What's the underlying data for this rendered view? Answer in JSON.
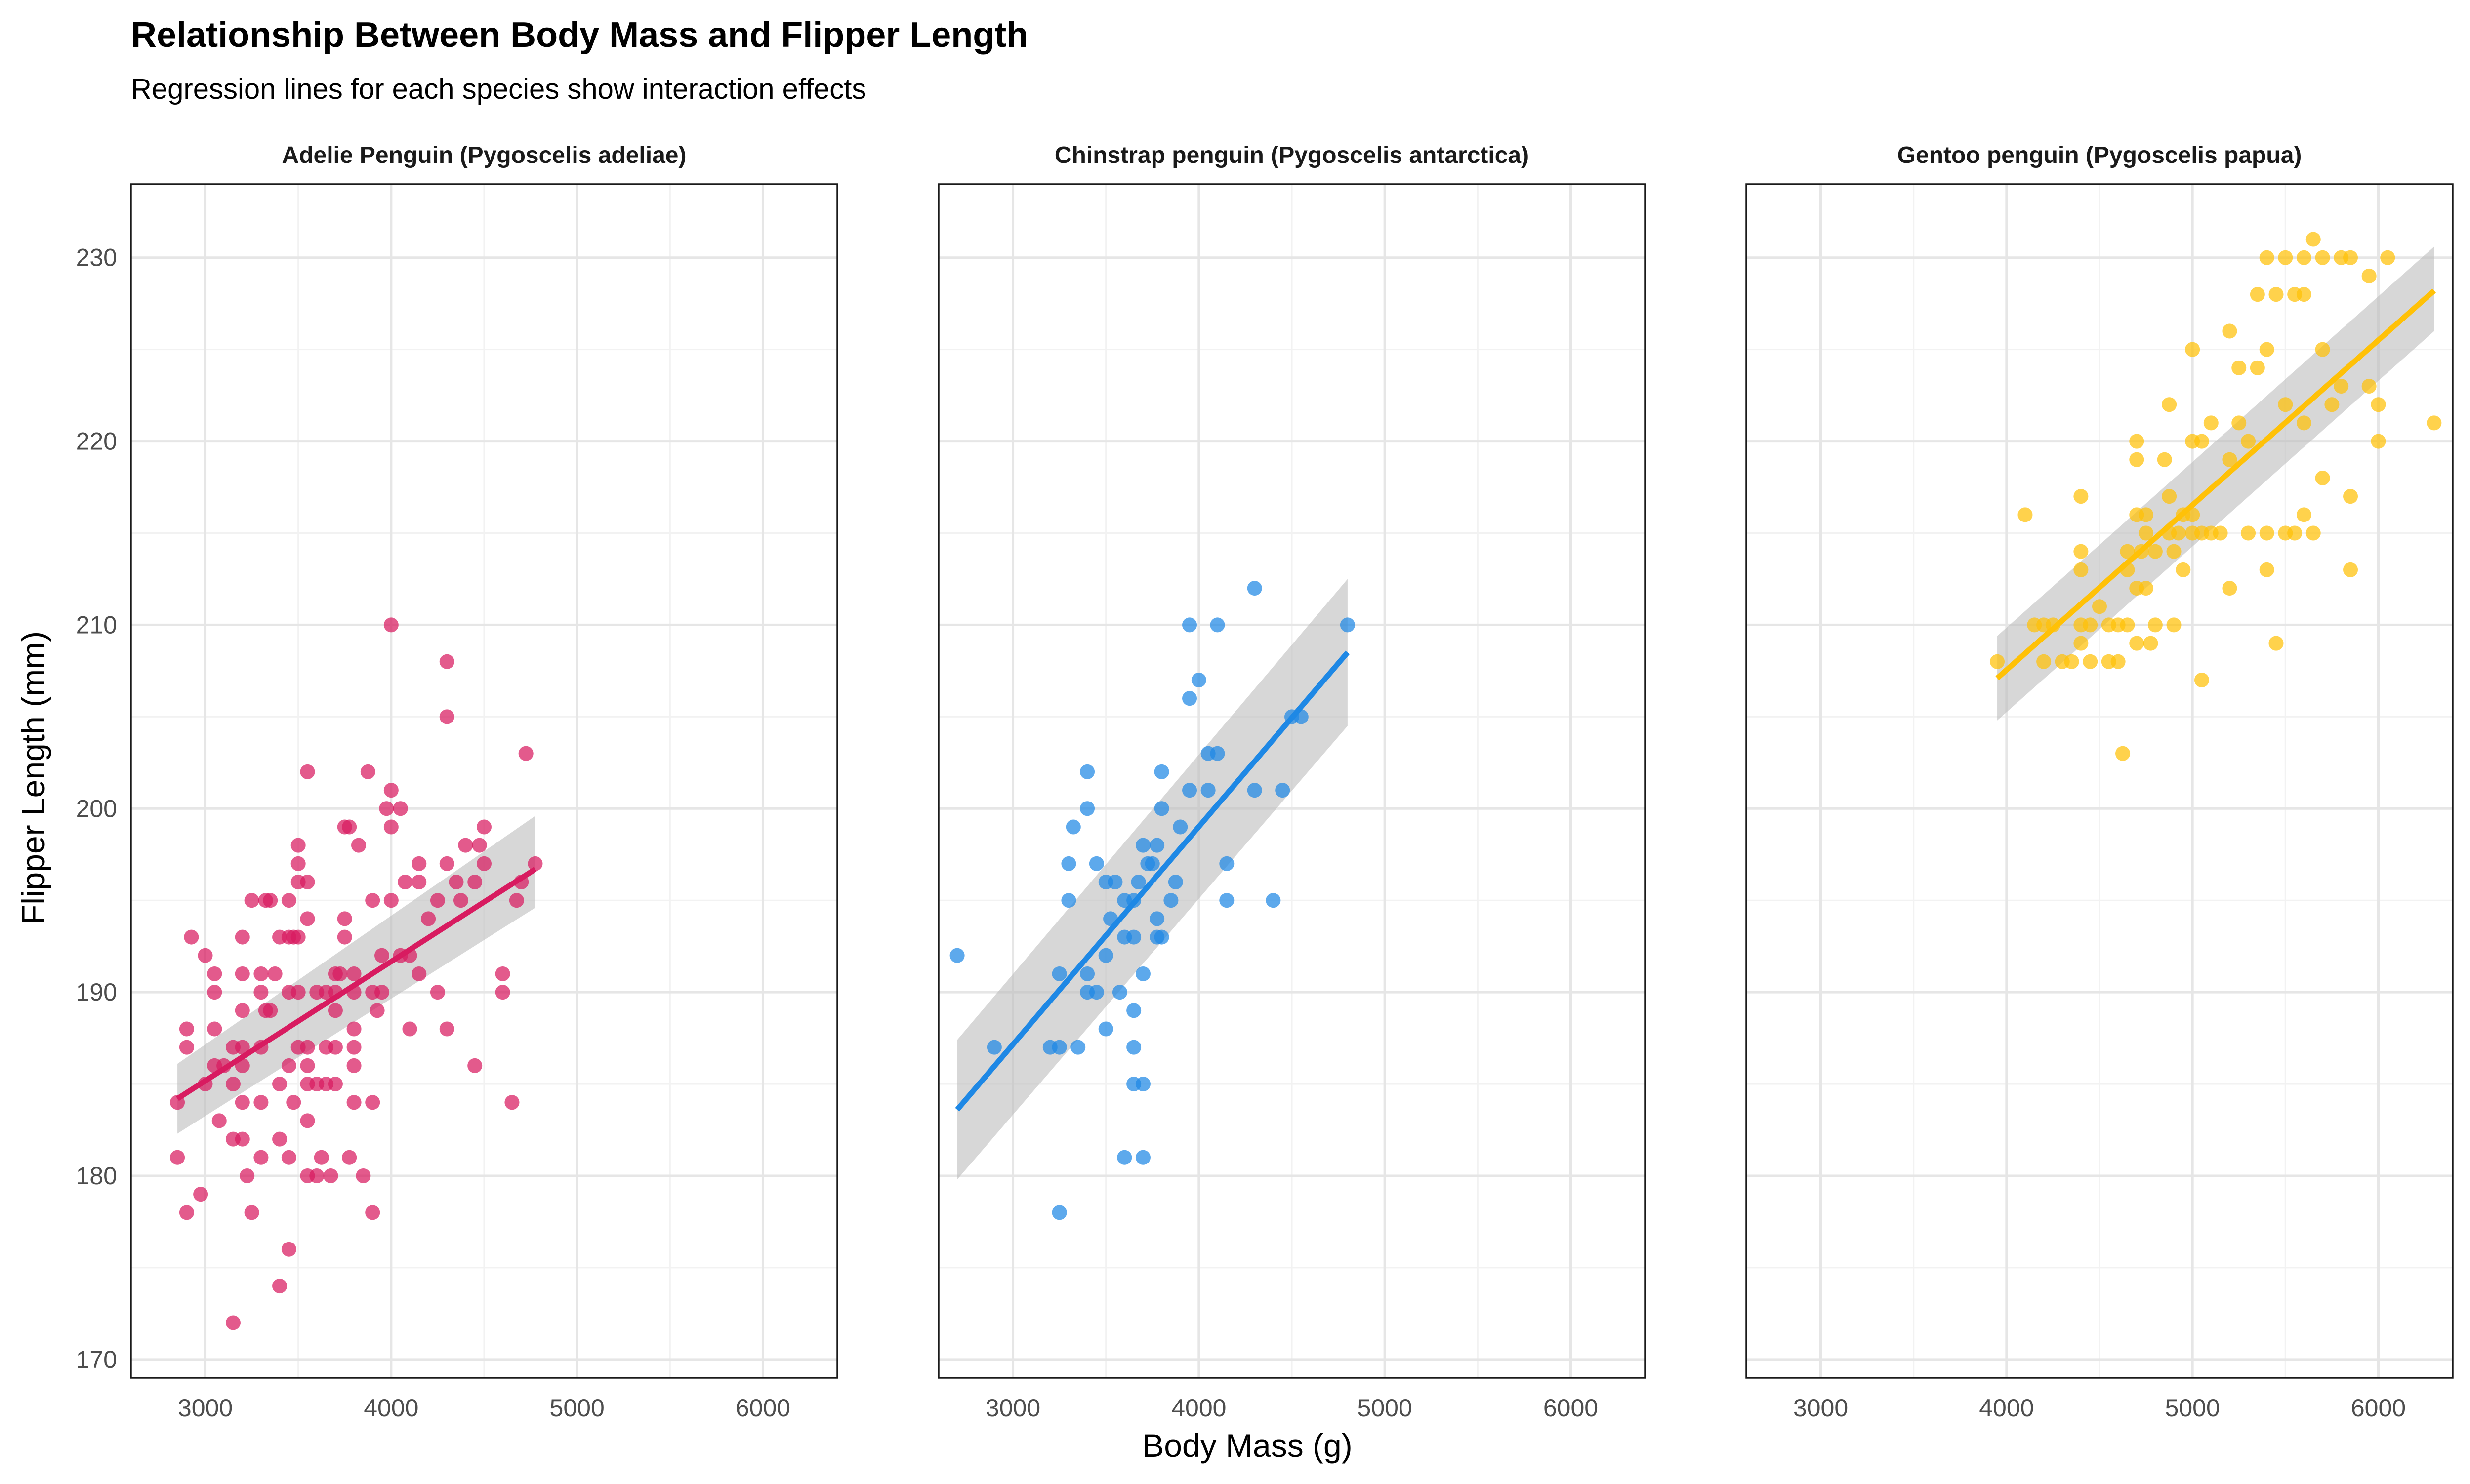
{
  "chart_data": {
    "type": "scatter",
    "title": "Relationship Between Body Mass and Flipper Length",
    "subtitle": "Regression lines for each species show interaction effects",
    "xlabel": "Body Mass (g)",
    "ylabel": "Flipper Length (mm)",
    "xlim": [
      2600,
      6400
    ],
    "ylim": [
      169,
      234
    ],
    "x_ticks": [
      3000,
      4000,
      5000,
      6000
    ],
    "y_ticks": [
      170,
      180,
      190,
      200,
      210,
      220,
      230
    ],
    "grid": true,
    "legend": "none",
    "panels": [
      {
        "name": "Adelie Penguin (Pygoscelis adeliae)",
        "color": "#d81b60",
        "trend": {
          "x": [
            2850,
            4775
          ],
          "y": [
            184.2,
            196.7
          ],
          "ci_low": [
            182.3,
            194.6
          ],
          "ci_high": [
            186.1,
            199.6
          ]
        },
        "points": [
          [
            2850,
            181
          ],
          [
            2850,
            184
          ],
          [
            2900,
            178
          ],
          [
            2900,
            187
          ],
          [
            2900,
            188
          ],
          [
            2925,
            193
          ],
          [
            2975,
            179
          ],
          [
            3000,
            185
          ],
          [
            3000,
            192
          ],
          [
            3050,
            186
          ],
          [
            3050,
            188
          ],
          [
            3050,
            190
          ],
          [
            3050,
            191
          ],
          [
            3075,
            183
          ],
          [
            3100,
            186
          ],
          [
            3150,
            172
          ],
          [
            3150,
            182
          ],
          [
            3150,
            185
          ],
          [
            3150,
            187
          ],
          [
            3200,
            182
          ],
          [
            3200,
            184
          ],
          [
            3200,
            186
          ],
          [
            3200,
            187
          ],
          [
            3200,
            189
          ],
          [
            3200,
            191
          ],
          [
            3200,
            193
          ],
          [
            3225,
            180
          ],
          [
            3250,
            178
          ],
          [
            3250,
            195
          ],
          [
            3300,
            181
          ],
          [
            3300,
            184
          ],
          [
            3300,
            187
          ],
          [
            3300,
            190
          ],
          [
            3300,
            191
          ],
          [
            3325,
            189
          ],
          [
            3325,
            195
          ],
          [
            3350,
            189
          ],
          [
            3350,
            195
          ],
          [
            3375,
            191
          ],
          [
            3400,
            174
          ],
          [
            3400,
            182
          ],
          [
            3400,
            185
          ],
          [
            3400,
            193
          ],
          [
            3450,
            176
          ],
          [
            3450,
            181
          ],
          [
            3450,
            186
          ],
          [
            3450,
            190
          ],
          [
            3450,
            193
          ],
          [
            3450,
            195
          ],
          [
            3475,
            184
          ],
          [
            3475,
            193
          ],
          [
            3500,
            187
          ],
          [
            3500,
            190
          ],
          [
            3500,
            193
          ],
          [
            3500,
            196
          ],
          [
            3500,
            197
          ],
          [
            3500,
            198
          ],
          [
            3550,
            180
          ],
          [
            3550,
            183
          ],
          [
            3550,
            185
          ],
          [
            3550,
            186
          ],
          [
            3550,
            187
          ],
          [
            3550,
            194
          ],
          [
            3550,
            196
          ],
          [
            3550,
            202
          ],
          [
            3600,
            180
          ],
          [
            3600,
            185
          ],
          [
            3600,
            190
          ],
          [
            3625,
            181
          ],
          [
            3650,
            185
          ],
          [
            3650,
            187
          ],
          [
            3650,
            190
          ],
          [
            3675,
            180
          ],
          [
            3700,
            185
          ],
          [
            3700,
            187
          ],
          [
            3700,
            189
          ],
          [
            3700,
            190
          ],
          [
            3700,
            191
          ],
          [
            3725,
            191
          ],
          [
            3750,
            193
          ],
          [
            3750,
            194
          ],
          [
            3750,
            199
          ],
          [
            3775,
            181
          ],
          [
            3775,
            199
          ],
          [
            3800,
            184
          ],
          [
            3800,
            186
          ],
          [
            3800,
            187
          ],
          [
            3800,
            188
          ],
          [
            3800,
            190
          ],
          [
            3800,
            191
          ],
          [
            3825,
            198
          ],
          [
            3850,
            180
          ],
          [
            3875,
            202
          ],
          [
            3900,
            178
          ],
          [
            3900,
            184
          ],
          [
            3900,
            190
          ],
          [
            3900,
            195
          ],
          [
            3925,
            189
          ],
          [
            3950,
            190
          ],
          [
            3950,
            192
          ],
          [
            3975,
            200
          ],
          [
            4000,
            199
          ],
          [
            4000,
            201
          ],
          [
            4000,
            195
          ],
          [
            4000,
            210
          ],
          [
            4050,
            192
          ],
          [
            4050,
            200
          ],
          [
            4075,
            196
          ],
          [
            4100,
            188
          ],
          [
            4100,
            192
          ],
          [
            4150,
            191
          ],
          [
            4150,
            196
          ],
          [
            4150,
            197
          ],
          [
            4200,
            194
          ],
          [
            4250,
            190
          ],
          [
            4250,
            195
          ],
          [
            4300,
            188
          ],
          [
            4300,
            197
          ],
          [
            4300,
            205
          ],
          [
            4300,
            208
          ],
          [
            4350,
            196
          ],
          [
            4375,
            195
          ],
          [
            4400,
            198
          ],
          [
            4450,
            186
          ],
          [
            4450,
            196
          ],
          [
            4475,
            198
          ],
          [
            4500,
            197
          ],
          [
            4500,
            199
          ],
          [
            4600,
            190
          ],
          [
            4600,
            191
          ],
          [
            4650,
            184
          ],
          [
            4675,
            195
          ],
          [
            4700,
            196
          ],
          [
            4725,
            203
          ],
          [
            4775,
            197
          ]
        ]
      },
      {
        "name": "Chinstrap penguin (Pygoscelis antarctica)",
        "color": "#1e88e5",
        "trend": {
          "x": [
            2700,
            4800
          ],
          "y": [
            183.6,
            208.5
          ],
          "ci_low": [
            179.8,
            204.5
          ],
          "ci_high": [
            187.4,
            212.5
          ]
        },
        "points": [
          [
            2700,
            192
          ],
          [
            2900,
            187
          ],
          [
            3200,
            187
          ],
          [
            3250,
            178
          ],
          [
            3250,
            187
          ],
          [
            3250,
            191
          ],
          [
            3300,
            195
          ],
          [
            3300,
            197
          ],
          [
            3325,
            199
          ],
          [
            3350,
            187
          ],
          [
            3400,
            190
          ],
          [
            3400,
            191
          ],
          [
            3400,
            200
          ],
          [
            3400,
            202
          ],
          [
            3450,
            190
          ],
          [
            3450,
            197
          ],
          [
            3500,
            188
          ],
          [
            3500,
            192
          ],
          [
            3500,
            196
          ],
          [
            3525,
            194
          ],
          [
            3550,
            196
          ],
          [
            3575,
            190
          ],
          [
            3600,
            181
          ],
          [
            3600,
            193
          ],
          [
            3600,
            195
          ],
          [
            3650,
            185
          ],
          [
            3650,
            187
          ],
          [
            3650,
            189
          ],
          [
            3650,
            193
          ],
          [
            3650,
            195
          ],
          [
            3675,
            196
          ],
          [
            3700,
            181
          ],
          [
            3700,
            185
          ],
          [
            3700,
            191
          ],
          [
            3700,
            198
          ],
          [
            3725,
            197
          ],
          [
            3750,
            197
          ],
          [
            3775,
            193
          ],
          [
            3775,
            194
          ],
          [
            3775,
            198
          ],
          [
            3800,
            193
          ],
          [
            3800,
            200
          ],
          [
            3800,
            202
          ],
          [
            3850,
            195
          ],
          [
            3875,
            196
          ],
          [
            3900,
            199
          ],
          [
            3950,
            201
          ],
          [
            3950,
            206
          ],
          [
            3950,
            210
          ],
          [
            4000,
            207
          ],
          [
            4050,
            201
          ],
          [
            4050,
            203
          ],
          [
            4100,
            203
          ],
          [
            4100,
            210
          ],
          [
            4150,
            195
          ],
          [
            4150,
            197
          ],
          [
            4300,
            201
          ],
          [
            4300,
            212
          ],
          [
            4400,
            195
          ],
          [
            4450,
            201
          ],
          [
            4500,
            205
          ],
          [
            4550,
            205
          ],
          [
            4800,
            210
          ]
        ]
      },
      {
        "name": "Gentoo penguin (Pygoscelis papua)",
        "color": "#ffc107",
        "trend": {
          "x": [
            3950,
            6300
          ],
          "y": [
            207.1,
            228.2
          ],
          "ci_low": [
            204.8,
            226.0
          ],
          "ci_high": [
            209.4,
            230.6
          ]
        },
        "points": [
          [
            3950,
            208
          ],
          [
            4100,
            216
          ],
          [
            4150,
            210
          ],
          [
            4200,
            208
          ],
          [
            4200,
            210
          ],
          [
            4250,
            210
          ],
          [
            4300,
            208
          ],
          [
            4350,
            208
          ],
          [
            4400,
            209
          ],
          [
            4400,
            210
          ],
          [
            4400,
            213
          ],
          [
            4400,
            214
          ],
          [
            4400,
            217
          ],
          [
            4450,
            208
          ],
          [
            4450,
            210
          ],
          [
            4500,
            211
          ],
          [
            4550,
            208
          ],
          [
            4550,
            210
          ],
          [
            4600,
            208
          ],
          [
            4600,
            210
          ],
          [
            4625,
            203
          ],
          [
            4650,
            210
          ],
          [
            4650,
            213
          ],
          [
            4650,
            214
          ],
          [
            4700,
            209
          ],
          [
            4700,
            212
          ],
          [
            4700,
            216
          ],
          [
            4700,
            219
          ],
          [
            4700,
            220
          ],
          [
            4725,
            214
          ],
          [
            4750,
            212
          ],
          [
            4750,
            215
          ],
          [
            4750,
            216
          ],
          [
            4775,
            209
          ],
          [
            4800,
            210
          ],
          [
            4800,
            214
          ],
          [
            4850,
            219
          ],
          [
            4875,
            215
          ],
          [
            4875,
            217
          ],
          [
            4875,
            222
          ],
          [
            4900,
            210
          ],
          [
            4900,
            214
          ],
          [
            4925,
            215
          ],
          [
            4950,
            213
          ],
          [
            4950,
            216
          ],
          [
            5000,
            215
          ],
          [
            5000,
            216
          ],
          [
            5000,
            220
          ],
          [
            5000,
            225
          ],
          [
            5050,
            207
          ],
          [
            5050,
            215
          ],
          [
            5050,
            220
          ],
          [
            5100,
            215
          ],
          [
            5100,
            221
          ],
          [
            5150,
            215
          ],
          [
            5200,
            212
          ],
          [
            5200,
            219
          ],
          [
            5200,
            226
          ],
          [
            5250,
            221
          ],
          [
            5250,
            224
          ],
          [
            5300,
            215
          ],
          [
            5300,
            220
          ],
          [
            5350,
            224
          ],
          [
            5350,
            228
          ],
          [
            5400,
            213
          ],
          [
            5400,
            215
          ],
          [
            5400,
            225
          ],
          [
            5400,
            230
          ],
          [
            5450,
            209
          ],
          [
            5450,
            228
          ],
          [
            5500,
            215
          ],
          [
            5500,
            222
          ],
          [
            5500,
            230
          ],
          [
            5550,
            215
          ],
          [
            5550,
            228
          ],
          [
            5600,
            216
          ],
          [
            5600,
            221
          ],
          [
            5600,
            228
          ],
          [
            5600,
            230
          ],
          [
            5650,
            215
          ],
          [
            5650,
            231
          ],
          [
            5700,
            218
          ],
          [
            5700,
            225
          ],
          [
            5700,
            230
          ],
          [
            5750,
            222
          ],
          [
            5800,
            223
          ],
          [
            5800,
            230
          ],
          [
            5850,
            213
          ],
          [
            5850,
            217
          ],
          [
            5850,
            230
          ],
          [
            5950,
            223
          ],
          [
            5950,
            229
          ],
          [
            6000,
            220
          ],
          [
            6000,
            222
          ],
          [
            6050,
            230
          ],
          [
            6300,
            221
          ]
        ]
      }
    ]
  }
}
